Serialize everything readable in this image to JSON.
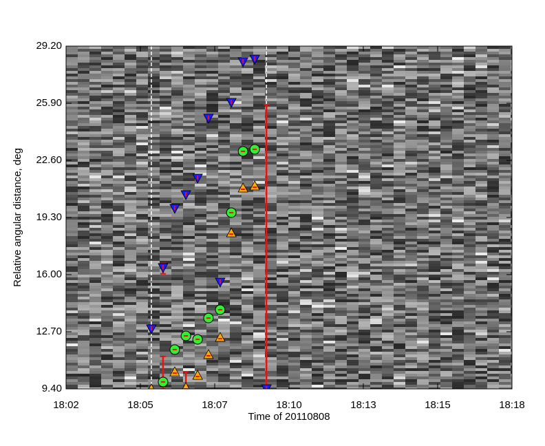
{
  "chart_data": {
    "type": "scatter",
    "xlabel": "Time of 20110808",
    "ylabel": "Relative angular distance, deg",
    "xlim": [
      0,
      16
    ],
    "ylim": [
      9.4,
      29.2
    ],
    "xticks": [
      {
        "value": 0,
        "label": "18:02"
      },
      {
        "value": 2.667,
        "label": "18:05"
      },
      {
        "value": 5.333,
        "label": "18:07"
      },
      {
        "value": 8,
        "label": "18:10"
      },
      {
        "value": 10.667,
        "label": "18:13"
      },
      {
        "value": 13.333,
        "label": "18:15"
      },
      {
        "value": 16,
        "label": "18:18"
      }
    ],
    "yticks": [
      {
        "value": 9.4,
        "label": "9.40"
      },
      {
        "value": 12.7,
        "label": "12.70"
      },
      {
        "value": 16.0,
        "label": "16.00"
      },
      {
        "value": 19.3,
        "label": "19.30"
      },
      {
        "value": 22.6,
        "label": "22.60"
      },
      {
        "value": 25.9,
        "label": "25.90"
      },
      {
        "value": 29.2,
        "label": "29.20"
      }
    ],
    "vlines": [
      3.06,
      7.19
    ],
    "series": [
      {
        "marker": "triangle-down",
        "color": "#1a1aff",
        "x": [
          3.06,
          3.48,
          3.9,
          4.3,
          4.72,
          5.11,
          5.53,
          5.93,
          6.35,
          6.77,
          7.19
        ],
        "values": [
          12.86,
          16.4,
          19.82,
          20.61,
          21.57,
          25.03,
          15.56,
          25.94,
          28.29,
          28.44,
          9.4
        ]
      },
      {
        "marker": "circle",
        "color": "#33ee33",
        "x": [
          3.48,
          3.9,
          4.3,
          4.72,
          5.11,
          5.53,
          5.93,
          6.35,
          6.77
        ],
        "values": [
          9.8,
          11.67,
          12.46,
          12.26,
          13.49,
          13.97,
          19.58,
          23.12,
          23.24
        ]
      },
      {
        "marker": "triangle-up",
        "color": "#ffaa00",
        "x": [
          3.06,
          3.9,
          4.3,
          4.72,
          5.11,
          5.53,
          5.93,
          6.35,
          6.77
        ],
        "values": [
          9.4,
          10.39,
          9.48,
          10.19,
          11.39,
          12.38,
          18.42,
          21.01,
          21.13
        ]
      }
    ],
    "errorbars": {
      "color": "#ee1111",
      "x": [
        3.48,
        4.3,
        7.19,
        3.48
      ],
      "low": [
        9.4,
        9.4,
        9.4,
        16.05
      ],
      "high": [
        11.27,
        10.39,
        25.82,
        16.65
      ]
    }
  }
}
